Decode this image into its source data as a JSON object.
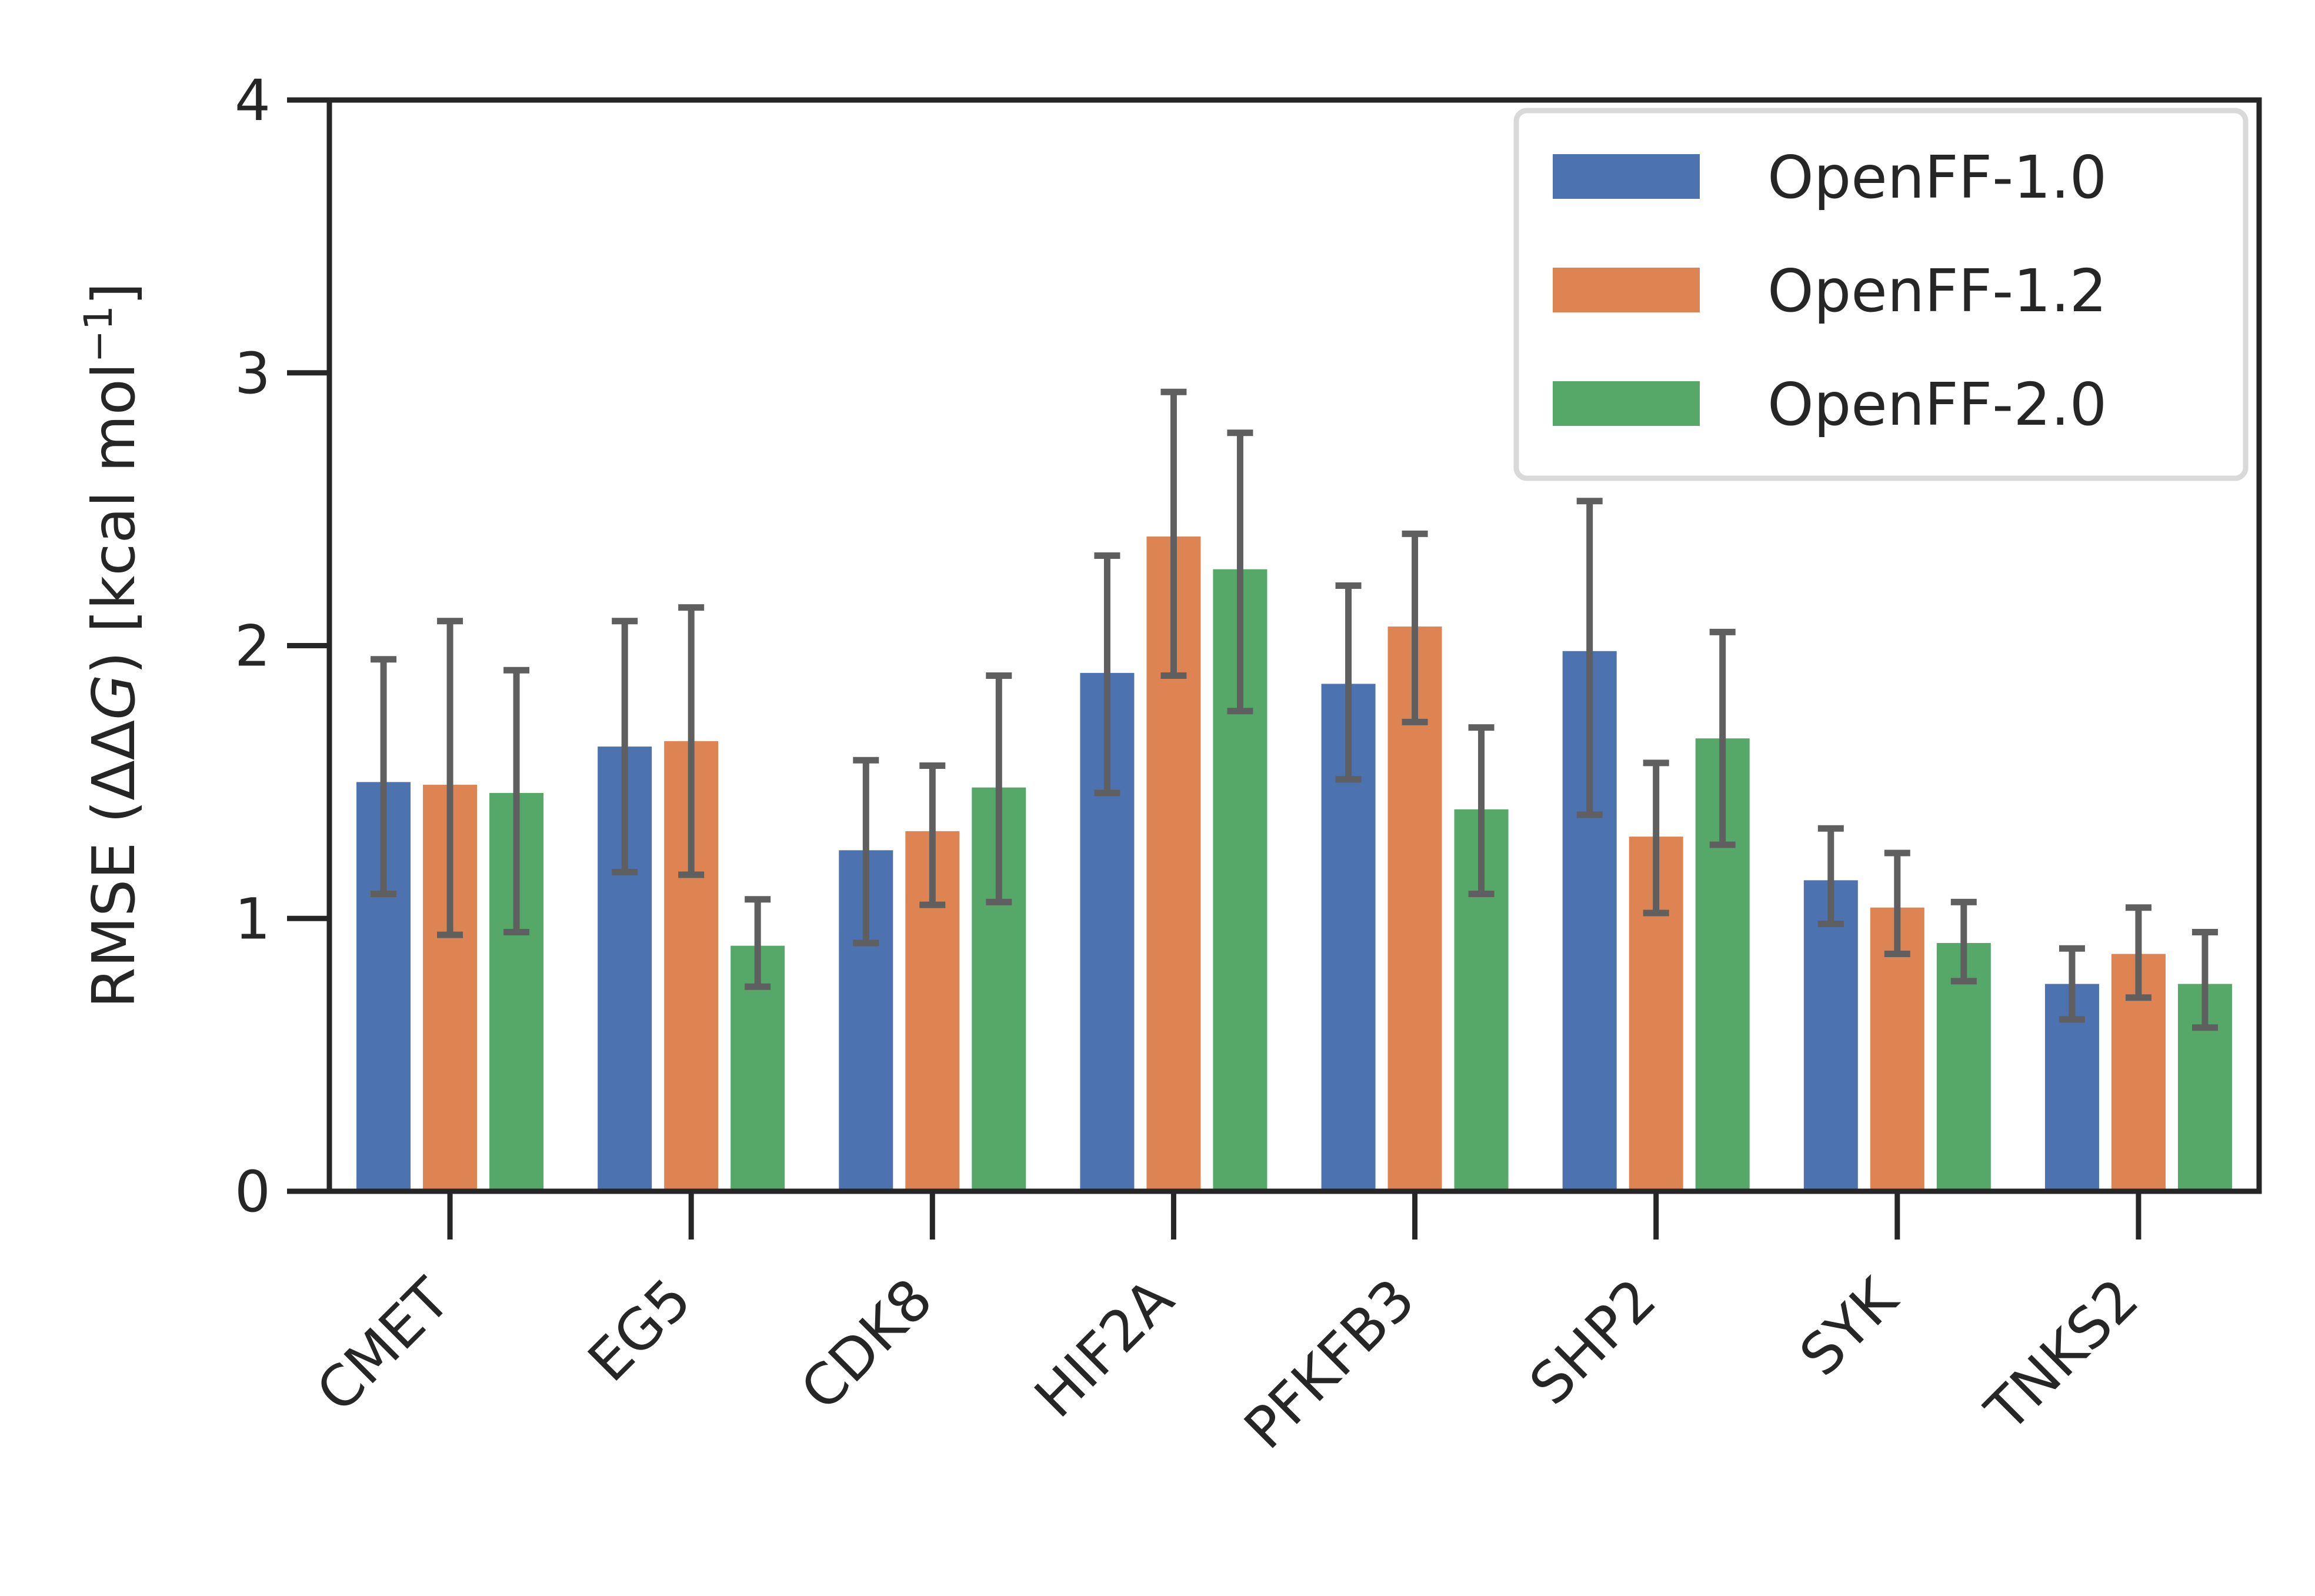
{
  "chart_data": {
    "type": "bar",
    "title": "",
    "xlabel": "",
    "ylabel": "RMSE (ΔΔG) [kcal mol⁻¹]",
    "ylabel_parts": {
      "pre": "RMSE (ΔΔ",
      "italic": "G",
      "post": ") [kcal mol",
      "sup": "−1",
      "end": "]"
    },
    "ylim": [
      0,
      4
    ],
    "yticks": [
      "0",
      "1",
      "2",
      "3",
      "4"
    ],
    "categories": [
      "CMET",
      "EG5",
      "CDK8",
      "HIF2A",
      "PFKFB3",
      "SHP2",
      "SYK",
      "TNKS2"
    ],
    "grid": false,
    "legend_position": "top-right",
    "series": [
      {
        "name": "OpenFF-1.0",
        "color": "#4c72b0",
        "values": [
          1.5,
          1.63,
          1.25,
          1.9,
          1.86,
          1.98,
          1.14,
          0.76
        ],
        "err_low": [
          1.09,
          1.17,
          0.91,
          1.46,
          1.51,
          1.38,
          0.98,
          0.63
        ],
        "err_high": [
          1.95,
          2.09,
          1.58,
          2.33,
          2.22,
          2.53,
          1.33,
          0.89
        ]
      },
      {
        "name": "OpenFF-1.2",
        "color": "#dd8452",
        "values": [
          1.49,
          1.65,
          1.32,
          2.4,
          2.07,
          1.3,
          1.04,
          0.87
        ],
        "err_low": [
          0.94,
          1.16,
          1.05,
          1.89,
          1.72,
          1.02,
          0.87,
          0.71
        ],
        "err_high": [
          2.09,
          2.14,
          1.56,
          2.93,
          2.41,
          1.57,
          1.24,
          1.04
        ]
      },
      {
        "name": "OpenFF-2.0",
        "color": "#55a868",
        "values": [
          1.46,
          0.9,
          1.48,
          2.28,
          1.4,
          1.66,
          0.91,
          0.76
        ],
        "err_low": [
          0.95,
          0.75,
          1.06,
          1.76,
          1.09,
          1.27,
          0.77,
          0.6
        ],
        "err_high": [
          1.91,
          1.07,
          1.89,
          2.78,
          1.7,
          2.05,
          1.06,
          0.95
        ]
      }
    ]
  }
}
